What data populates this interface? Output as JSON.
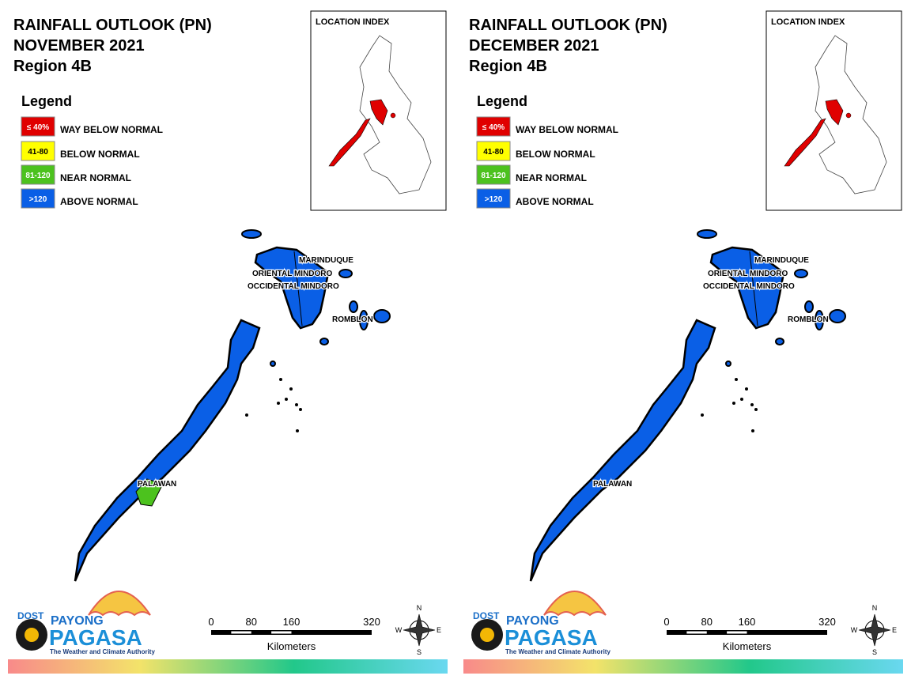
{
  "panels": [
    {
      "title": [
        "RAINFALL OUTLOOK (PN)",
        "NOVEMBER 2021",
        "Region 4B"
      ],
      "legend_title": "Legend",
      "legend": [
        {
          "range": "≤ 40%",
          "label": "WAY BELOW NORMAL",
          "color": "#e00000"
        },
        {
          "range": "41-80",
          "label": "BELOW NORMAL",
          "color": "#ffff00"
        },
        {
          "range": "81-120",
          "label": "NEAR NORMAL",
          "color": "#4cc21e"
        },
        {
          "range": ">120",
          "label": "ABOVE NORMAL",
          "color": "#0a5fe6"
        }
      ],
      "location_index": "LOCATION INDEX",
      "map_labels": [
        "MARINDUQUE",
        "ORIENTAL MINDORO",
        "OCCIDENTAL MINDORO",
        "ROMBLON",
        "PALAWAN"
      ],
      "scale_ticks": [
        0,
        80,
        160,
        320
      ],
      "scale_unit": "Kilometers",
      "compass": [
        "N",
        "E",
        "S",
        "W"
      ],
      "logo": {
        "dost": "DOST",
        "payong": "PAYONG",
        "pagasa": "PAGASA",
        "tagline": "The Weather and Climate Authority"
      }
    },
    {
      "title": [
        "RAINFALL OUTLOOK (PN)",
        "DECEMBER 2021",
        "Region 4B"
      ],
      "legend_title": "Legend",
      "legend": [
        {
          "range": "≤ 40%",
          "label": "WAY BELOW NORMAL",
          "color": "#e00000"
        },
        {
          "range": "41-80",
          "label": "BELOW NORMAL",
          "color": "#ffff00"
        },
        {
          "range": "81-120",
          "label": "NEAR NORMAL",
          "color": "#4cc21e"
        },
        {
          "range": ">120",
          "label": "ABOVE NORMAL",
          "color": "#0a5fe6"
        }
      ],
      "location_index": "LOCATION INDEX",
      "map_labels": [
        "MARINDUQUE",
        "ORIENTAL MINDORO",
        "OCCIDENTAL MINDORO",
        "ROMBLON",
        "PALAWAN"
      ],
      "scale_ticks": [
        0,
        80,
        160,
        320
      ],
      "scale_unit": "Kilometers",
      "compass": [
        "N",
        "E",
        "S",
        "W"
      ],
      "logo": {
        "dost": "DOST",
        "payong": "PAYONG",
        "pagasa": "PAGASA",
        "tagline": "The Weather and Climate Authority"
      }
    }
  ]
}
